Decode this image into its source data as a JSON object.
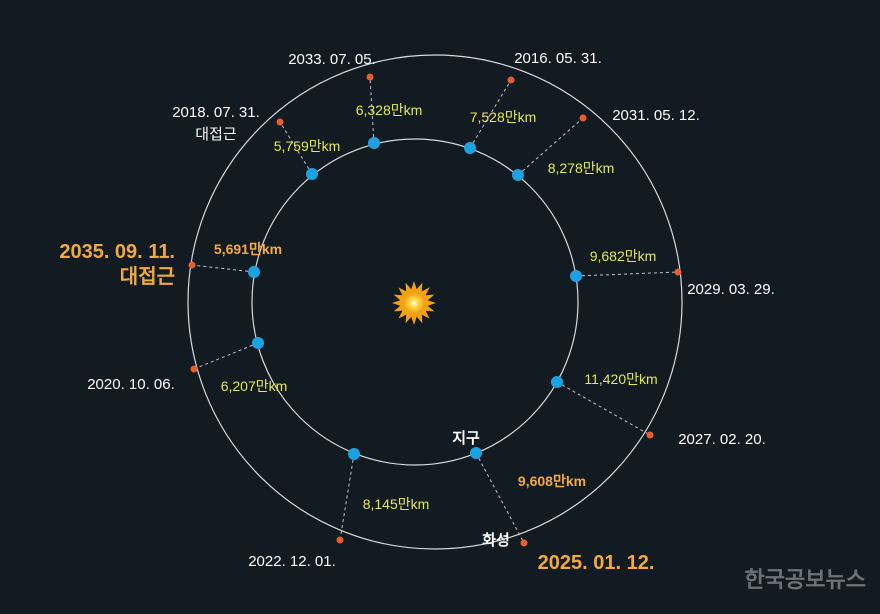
{
  "planets": {
    "earth": "지구",
    "mars": "화성"
  },
  "watermark": "한국공보뉴스",
  "colors": {
    "background": "#131b22",
    "orbit": "#d7d9db",
    "earth_dot": "#1aa3e0",
    "mars_dot": "#e85d2c",
    "connector": "#bfc3c7",
    "date_text": "#ffffff",
    "distance_text": "#e6e84a",
    "highlight": "#f4a93b",
    "sun": "#ffc61a"
  },
  "oppositions": [
    {
      "date": "2033. 07. 05.",
      "distance": "6,328만km",
      "note": "",
      "highlight": false
    },
    {
      "date": "2016. 05. 31.",
      "distance": "7,528만km",
      "note": "",
      "highlight": false
    },
    {
      "date": "2031. 05. 12.",
      "distance": "8,278만km",
      "note": "",
      "highlight": false
    },
    {
      "date": "2029. 03. 29.",
      "distance": "9,682만km",
      "note": "",
      "highlight": false
    },
    {
      "date": "2027. 02. 20.",
      "distance": "11,420만km",
      "note": "",
      "highlight": false
    },
    {
      "date": "2025. 01. 12.",
      "distance": "9,608만km",
      "note": "",
      "highlight": true
    },
    {
      "date": "2022. 12. 01.",
      "distance": "8,145만km",
      "note": "",
      "highlight": false
    },
    {
      "date": "2020. 10. 06.",
      "distance": "6,207만km",
      "note": "",
      "highlight": false
    },
    {
      "date": "2035. 09. 11.",
      "distance": "5,691만km",
      "note": "대접근",
      "highlight": true
    },
    {
      "date": "2018. 07. 31.",
      "distance": "5,759만km",
      "note": "대접근",
      "highlight": false
    }
  ]
}
